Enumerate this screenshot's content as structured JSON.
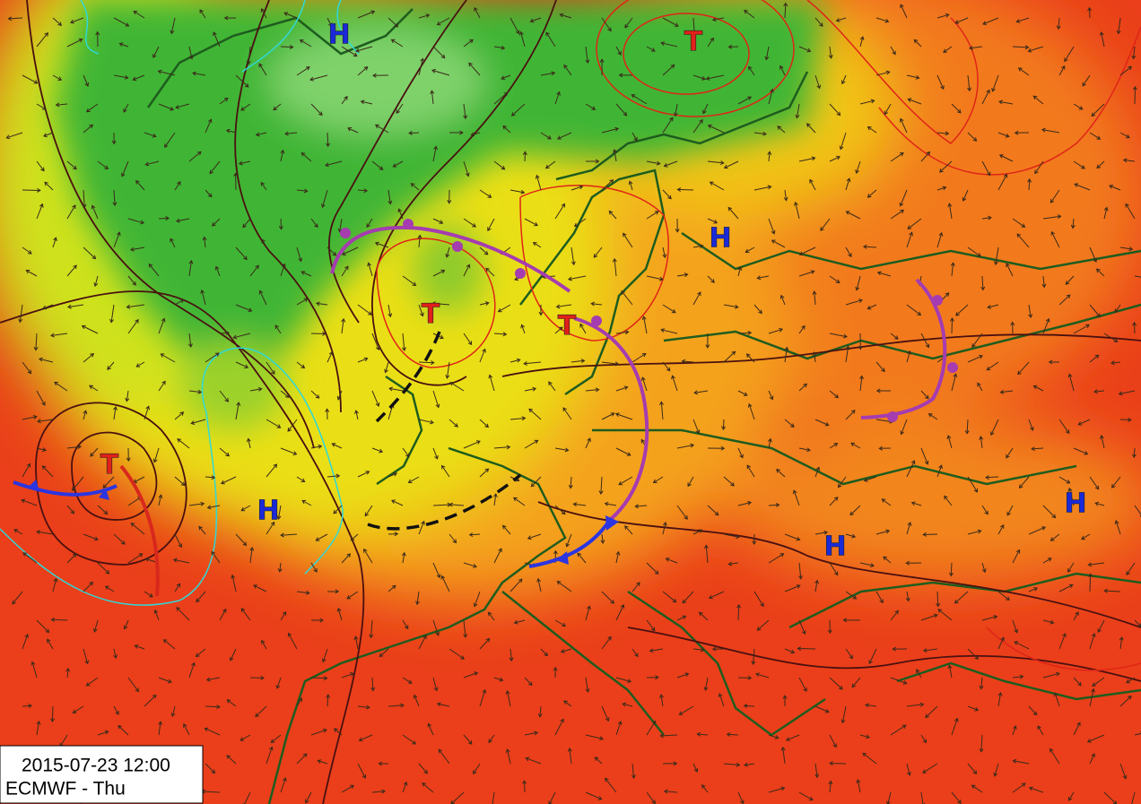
{
  "systems": [
    "H",
    "T",
    "H",
    "T",
    "T",
    "T",
    "H",
    "H",
    "H"
  ],
  "info": {
    "timestamp": "2015-07-23 12:00",
    "caption": "ECMWF - Thu"
  }
}
